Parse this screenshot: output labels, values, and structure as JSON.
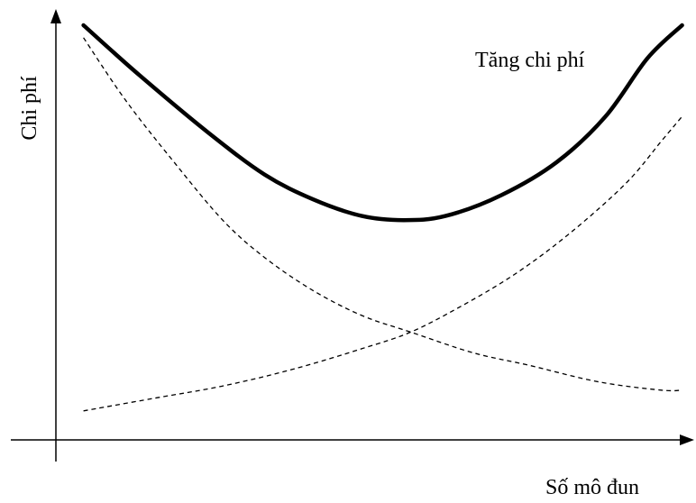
{
  "chart_data": {
    "type": "line",
    "ylabel": "Chi phí",
    "xlabel": "Số mô đun",
    "grid": false,
    "legend": "none",
    "axis_ticks": "none",
    "annotations": [
      {
        "text": "Tăng chi phí",
        "target_series": "total"
      }
    ],
    "series": [
      {
        "id": "total",
        "style": "solid-bold",
        "color": "#000000",
        "points": [
          [
            0.12,
            1.0
          ],
          [
            0.2,
            0.88
          ],
          [
            0.3,
            0.74
          ],
          [
            0.38,
            0.64
          ],
          [
            0.45,
            0.58
          ],
          [
            0.52,
            0.54
          ],
          [
            0.58,
            0.53
          ],
          [
            0.64,
            0.54
          ],
          [
            0.72,
            0.59
          ],
          [
            0.8,
            0.67
          ],
          [
            0.87,
            0.78
          ],
          [
            0.93,
            0.92
          ],
          [
            0.98,
            1.0
          ]
        ]
      },
      {
        "id": "decreasing",
        "style": "dashed",
        "color": "#000000",
        "points": [
          [
            0.12,
            0.97
          ],
          [
            0.18,
            0.82
          ],
          [
            0.25,
            0.67
          ],
          [
            0.32,
            0.53
          ],
          [
            0.38,
            0.44
          ],
          [
            0.45,
            0.36
          ],
          [
            0.52,
            0.3
          ],
          [
            0.59,
            0.26
          ],
          [
            0.68,
            0.21
          ],
          [
            0.76,
            0.18
          ],
          [
            0.86,
            0.14
          ],
          [
            0.95,
            0.12
          ],
          [
            0.98,
            0.12
          ]
        ]
      },
      {
        "id": "increasing",
        "style": "dashed",
        "color": "#000000",
        "points": [
          [
            0.12,
            0.07
          ],
          [
            0.22,
            0.1
          ],
          [
            0.32,
            0.13
          ],
          [
            0.42,
            0.17
          ],
          [
            0.52,
            0.22
          ],
          [
            0.59,
            0.26
          ],
          [
            0.66,
            0.32
          ],
          [
            0.74,
            0.4
          ],
          [
            0.82,
            0.5
          ],
          [
            0.9,
            0.62
          ],
          [
            0.95,
            0.72
          ],
          [
            0.98,
            0.78
          ]
        ]
      }
    ]
  }
}
